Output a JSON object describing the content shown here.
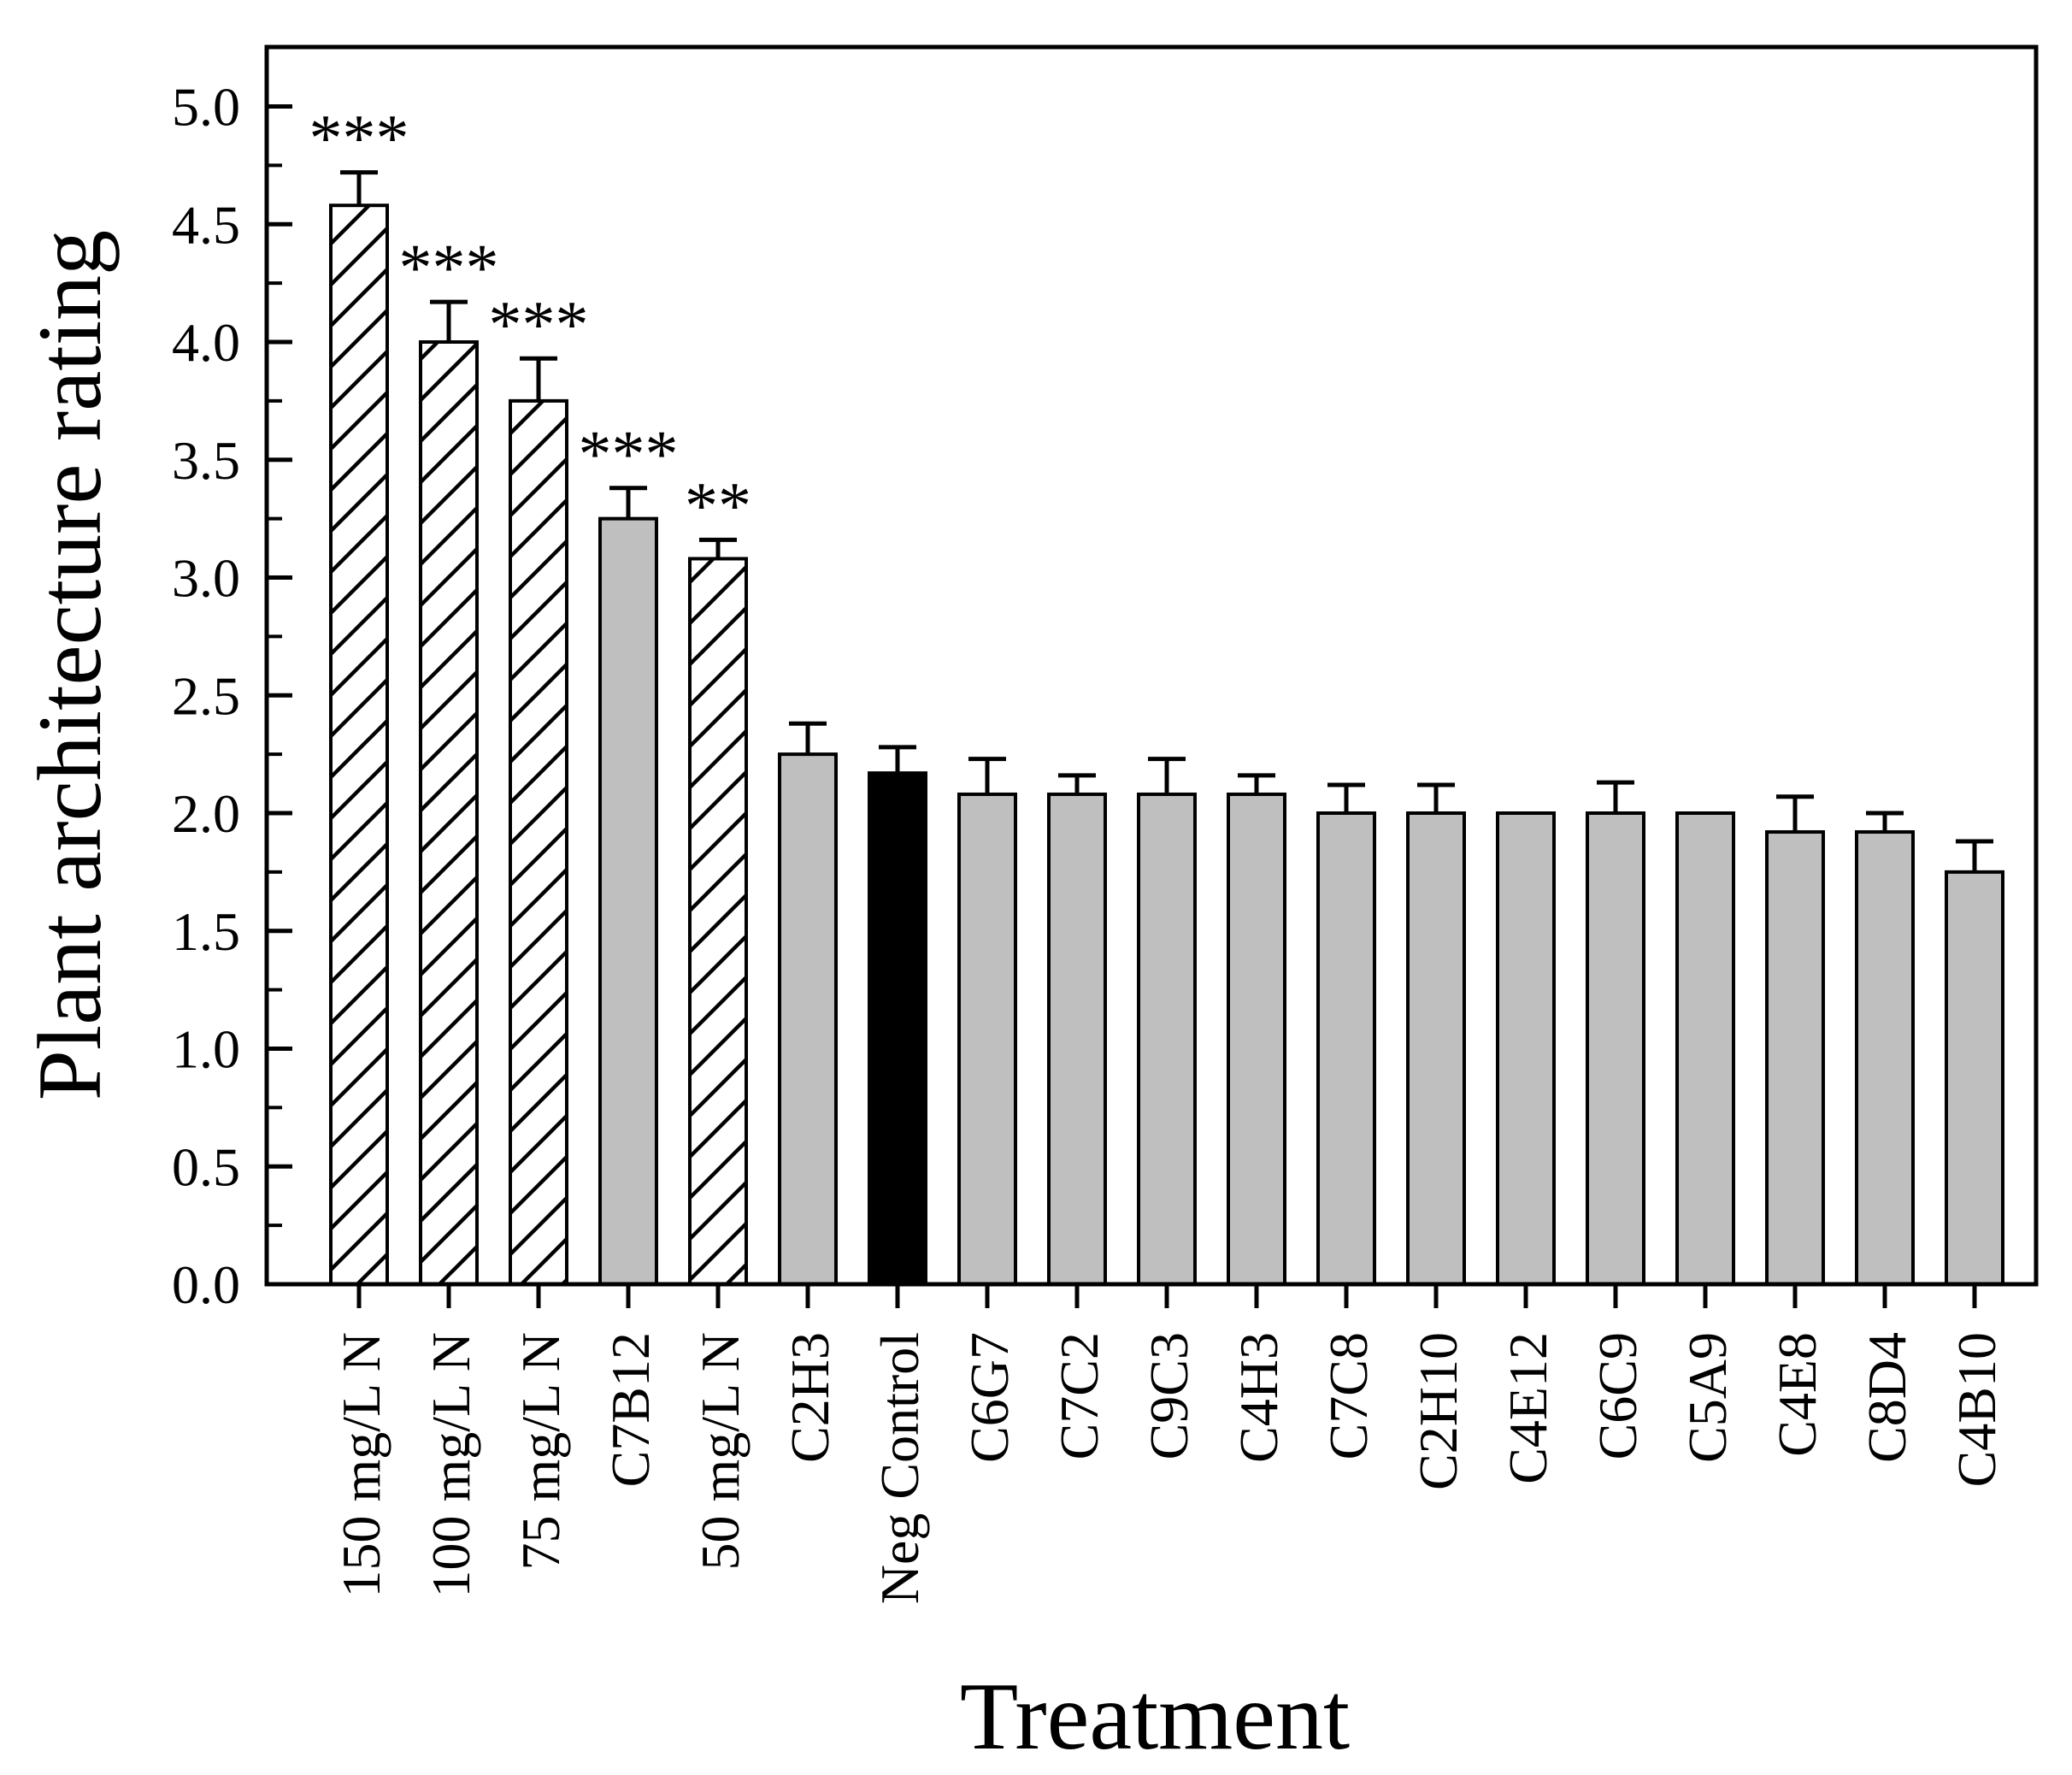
{
  "chart_data": {
    "type": "bar",
    "title": "",
    "xlabel": "Treatment",
    "ylabel": "Plant architecture rating",
    "ylim": [
      0.0,
      5.25
    ],
    "grid": false,
    "legend": null,
    "yticks": [
      0.0,
      0.5,
      1.0,
      1.5,
      2.0,
      2.5,
      3.0,
      3.5,
      4.0,
      4.5,
      5.0
    ],
    "ytick_labels": [
      "0.0",
      "0.5",
      "1.0",
      "1.5",
      "2.0",
      "2.5",
      "3.0",
      "3.5",
      "4.0",
      "4.5",
      "5.0"
    ],
    "minor_tick_step": 0.25,
    "categories": [
      "150 mg/L N",
      "100 mg/L N",
      "75 mg/L N",
      "C7B12",
      "50 mg/L N",
      "C2H3",
      "Neg Control",
      "C6G7",
      "C7C2",
      "C9C3",
      "C4H3",
      "C7C8",
      "C2H10",
      "C4E12",
      "C6C9",
      "C5A9",
      "C4E8",
      "C8D4",
      "C4B10"
    ],
    "values": [
      4.58,
      4.0,
      3.75,
      3.25,
      3.08,
      2.25,
      2.17,
      2.08,
      2.08,
      2.08,
      2.08,
      2.0,
      2.0,
      2.0,
      2.0,
      2.0,
      1.92,
      1.92,
      1.75
    ],
    "errors_plus": [
      0.14,
      0.17,
      0.18,
      0.13,
      0.08,
      0.13,
      0.11,
      0.15,
      0.08,
      0.15,
      0.08,
      0.12,
      0.12,
      0,
      0.13,
      0,
      0.15,
      0.08,
      0.13
    ],
    "significance": [
      "***",
      "***",
      "***",
      "***",
      "**",
      "",
      "",
      "",
      "",
      "",
      "",
      "",
      "",
      "",
      "",
      "",
      "",
      "",
      ""
    ],
    "bar_styles": [
      "hatch",
      "hatch",
      "hatch",
      "gray",
      "hatch",
      "gray",
      "black",
      "gray",
      "gray",
      "gray",
      "gray",
      "gray",
      "gray",
      "gray",
      "gray",
      "gray",
      "gray",
      "gray",
      "gray"
    ],
    "colors": {
      "gray": "#bfbfbf",
      "black": "#000000",
      "hatch_background": "#ffffff",
      "outline": "#000000",
      "axis": "#000000",
      "text": "#000000"
    }
  }
}
